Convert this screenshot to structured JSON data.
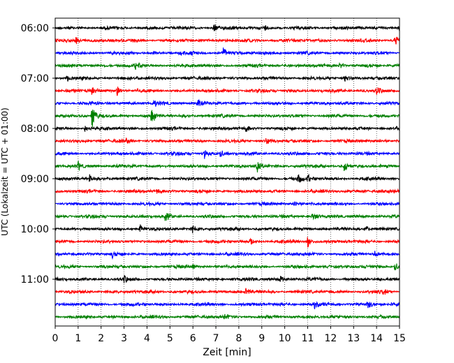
{
  "chart_data": {
    "type": "line",
    "title": "",
    "xlabel": "Zeit  [min]",
    "ylabel": "UTC (Lokalzeit = UTC + 01:00)",
    "xlim": [
      0,
      15
    ],
    "x_ticks": [
      0,
      1,
      2,
      3,
      4,
      5,
      6,
      7,
      8,
      9,
      10,
      11,
      12,
      13,
      14,
      15
    ],
    "grid": "vertical-dotted",
    "trace_interval_minutes": 15,
    "y_tick_labels": [
      "06:00",
      "07:00",
      "08:00",
      "09:00",
      "10:00",
      "11:00"
    ],
    "color_cycle": [
      "#000000",
      "#ff0000",
      "#0000ff",
      "#008000"
    ],
    "series": [
      {
        "start": "06:00",
        "color": "#000000",
        "events": [
          {
            "t": 6.9,
            "amp": 0.45
          },
          {
            "t": 9.1,
            "amp": 0.35
          },
          {
            "t": 15.0,
            "amp": 0.5
          }
        ]
      },
      {
        "start": "06:15",
        "color": "#ff0000",
        "events": [
          {
            "t": 0.9,
            "amp": 0.3
          },
          {
            "t": 14.8,
            "amp": 0.5
          }
        ]
      },
      {
        "start": "06:30",
        "color": "#0000ff",
        "events": [
          {
            "t": 5.4,
            "amp": 0.35
          },
          {
            "t": 7.3,
            "amp": 0.6
          }
        ]
      },
      {
        "start": "06:45",
        "color": "#008000",
        "events": [
          {
            "t": 3.5,
            "amp": 0.35
          },
          {
            "t": 12.4,
            "amp": 0.3
          }
        ]
      },
      {
        "start": "07:00",
        "color": "#000000",
        "events": [
          {
            "t": 0.5,
            "amp": 0.35
          },
          {
            "t": 12.6,
            "amp": 0.3
          }
        ]
      },
      {
        "start": "07:15",
        "color": "#ff0000",
        "events": [
          {
            "t": 1.6,
            "amp": 0.35
          },
          {
            "t": 2.7,
            "amp": 0.65
          },
          {
            "t": 14.0,
            "amp": 0.5
          }
        ]
      },
      {
        "start": "07:30",
        "color": "#0000ff",
        "events": [
          {
            "t": 4.3,
            "amp": 0.3
          },
          {
            "t": 6.2,
            "amp": 0.4
          }
        ]
      },
      {
        "start": "07:45",
        "color": "#008000",
        "events": [
          {
            "t": 1.6,
            "amp": 1.6
          },
          {
            "t": 4.2,
            "amp": 1.0
          }
        ]
      },
      {
        "start": "08:00",
        "color": "#000000",
        "events": [
          {
            "t": 1.3,
            "amp": 0.3
          },
          {
            "t": 8.3,
            "amp": 0.3
          }
        ]
      },
      {
        "start": "08:15",
        "color": "#ff0000",
        "events": [
          {
            "t": 3.1,
            "amp": 0.3
          },
          {
            "t": 9.2,
            "amp": 0.35
          }
        ]
      },
      {
        "start": "08:30",
        "color": "#0000ff",
        "events": [
          {
            "t": 6.5,
            "amp": 0.45
          },
          {
            "t": 7.2,
            "amp": 0.35
          }
        ]
      },
      {
        "start": "08:45",
        "color": "#008000",
        "events": [
          {
            "t": 1.0,
            "amp": 0.35
          },
          {
            "t": 8.8,
            "amp": 0.7
          },
          {
            "t": 12.6,
            "amp": 0.5
          }
        ]
      },
      {
        "start": "09:00",
        "color": "#000000",
        "events": [
          {
            "t": 1.5,
            "amp": 0.45
          },
          {
            "t": 10.6,
            "amp": 0.55
          },
          {
            "t": 11.0,
            "amp": 0.4
          }
        ]
      },
      {
        "start": "09:15",
        "color": "#ff0000",
        "events": [
          {
            "t": 4.4,
            "amp": 0.3
          }
        ]
      },
      {
        "start": "09:30",
        "color": "#0000ff",
        "events": [
          {
            "t": 10.4,
            "amp": 0.3
          }
        ]
      },
      {
        "start": "09:45",
        "color": "#008000",
        "events": [
          {
            "t": 4.8,
            "amp": 0.5
          },
          {
            "t": 11.2,
            "amp": 0.45
          }
        ]
      },
      {
        "start": "10:00",
        "color": "#000000",
        "events": [
          {
            "t": 3.7,
            "amp": 0.45
          },
          {
            "t": 6.0,
            "amp": 0.35
          },
          {
            "t": 13.5,
            "amp": 0.4
          }
        ]
      },
      {
        "start": "10:15",
        "color": "#ff0000",
        "events": [
          {
            "t": 11.0,
            "amp": 0.7
          },
          {
            "t": 8.5,
            "amp": 0.3
          }
        ]
      },
      {
        "start": "10:30",
        "color": "#0000ff",
        "events": [
          {
            "t": 2.5,
            "amp": 0.3
          },
          {
            "t": 13.9,
            "amp": 0.3
          }
        ]
      },
      {
        "start": "10:45",
        "color": "#008000",
        "events": [
          {
            "t": 6.0,
            "amp": 0.3
          },
          {
            "t": 14.8,
            "amp": 0.45
          }
        ]
      },
      {
        "start": "11:00",
        "color": "#000000",
        "events": [
          {
            "t": 3.0,
            "amp": 0.3
          },
          {
            "t": 9.8,
            "amp": 0.3
          }
        ]
      },
      {
        "start": "11:15",
        "color": "#ff0000",
        "events": [
          {
            "t": 8.3,
            "amp": 0.5
          },
          {
            "t": 14.3,
            "amp": 0.3
          }
        ]
      },
      {
        "start": "11:30",
        "color": "#0000ff",
        "events": [
          {
            "t": 11.3,
            "amp": 0.3
          },
          {
            "t": 13.6,
            "amp": 0.5
          }
        ]
      },
      {
        "start": "11:45",
        "color": "#008000",
        "events": [
          {
            "t": 7.4,
            "amp": 0.3
          }
        ]
      }
    ]
  }
}
